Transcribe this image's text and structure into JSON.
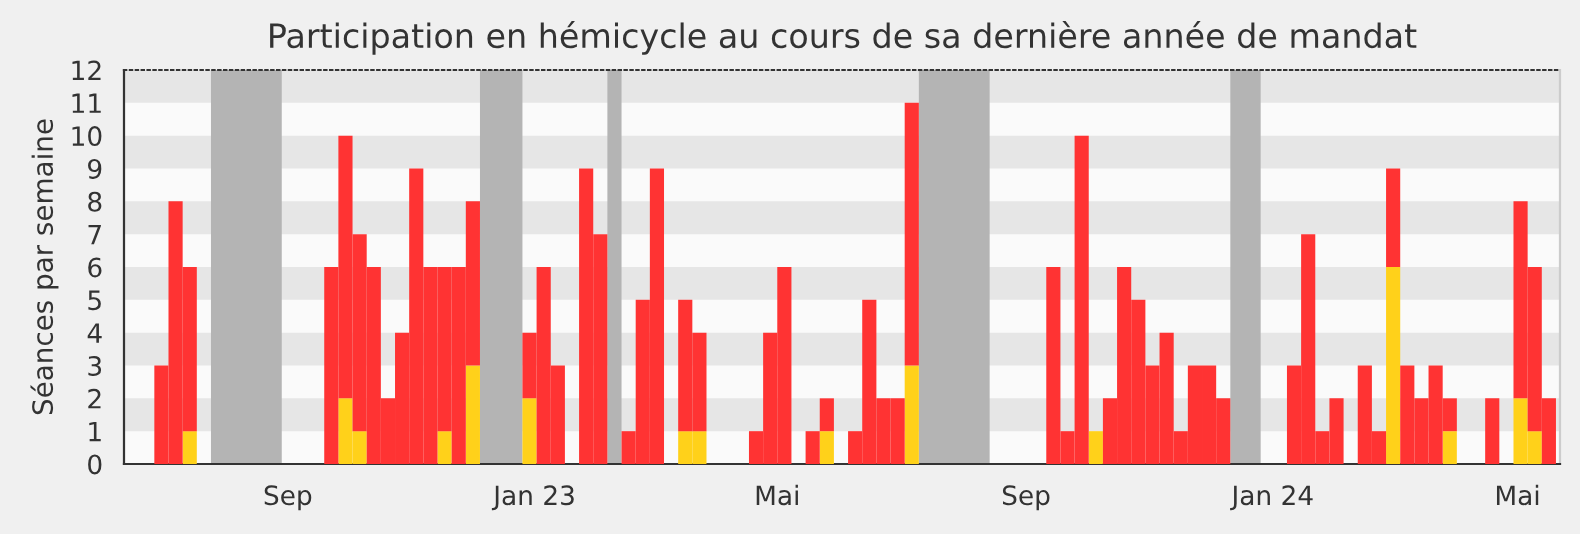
{
  "chart_data": {
    "type": "bar",
    "title": "Participation en hémicycle au cours de sa dernière année de mandat",
    "ylabel": "Séances par semaine",
    "stacked": true,
    "x": [
      "2022-06-27",
      "2022-07-04",
      "2022-07-11",
      "2022-09-19",
      "2022-09-26",
      "2022-10-03",
      "2022-10-10",
      "2022-10-17",
      "2022-10-24",
      "2022-10-31",
      "2022-11-07",
      "2022-11-14",
      "2022-11-21",
      "2022-11-28",
      "2022-12-26",
      "2023-01-02",
      "2023-01-09",
      "2023-01-23",
      "2023-01-30",
      "2023-02-13",
      "2023-02-20",
      "2023-02-27",
      "2023-03-13",
      "2023-03-20",
      "2023-04-17",
      "2023-04-24",
      "2023-05-01",
      "2023-05-15",
      "2023-05-22",
      "2023-06-05",
      "2023-06-12",
      "2023-06-19",
      "2023-06-26",
      "2023-07-03",
      "2023-09-11",
      "2023-09-18",
      "2023-09-25",
      "2023-10-02",
      "2023-10-09",
      "2023-10-16",
      "2023-10-23",
      "2023-10-30",
      "2023-11-06",
      "2023-11-13",
      "2023-11-20",
      "2023-11-27",
      "2023-12-04",
      "2024-01-08",
      "2024-01-15",
      "2024-01-22",
      "2024-01-29",
      "2024-02-12",
      "2024-02-19",
      "2024-02-26",
      "2024-03-04",
      "2024-03-11",
      "2024-03-18",
      "2024-03-25",
      "2024-04-15",
      "2024-04-29",
      "2024-05-06",
      "2024-05-13"
    ],
    "series": [
      {
        "color": "#ffd11a",
        "values": [
          null,
          null,
          1,
          null,
          2,
          1,
          null,
          null,
          null,
          null,
          null,
          1,
          null,
          3,
          2,
          null,
          null,
          null,
          null,
          null,
          null,
          null,
          1,
          1,
          null,
          null,
          null,
          null,
          1,
          null,
          null,
          null,
          null,
          3,
          null,
          null,
          null,
          1,
          null,
          null,
          null,
          null,
          null,
          null,
          null,
          null,
          null,
          null,
          null,
          null,
          null,
          null,
          null,
          6,
          null,
          null,
          null,
          1,
          null,
          2,
          1,
          null
        ]
      },
      {
        "color": "#ff3333",
        "values": [
          3,
          8,
          5,
          6,
          8,
          6,
          6,
          2,
          4,
          9,
          6,
          5,
          6,
          5,
          2,
          6,
          3,
          9,
          7,
          1,
          5,
          9,
          4,
          3,
          1,
          4,
          6,
          1,
          1,
          1,
          5,
          2,
          2,
          8,
          6,
          1,
          10,
          null,
          2,
          6,
          5,
          3,
          4,
          1,
          3,
          3,
          2,
          3,
          7,
          1,
          2,
          3,
          1,
          3,
          3,
          2,
          3,
          1,
          2,
          6,
          5,
          2
        ]
      }
    ],
    "bands": [
      {
        "axis": "x",
        "from": "2022-07-25",
        "to": "2022-08-29",
        "color": "#b4b4b4"
      },
      {
        "axis": "x",
        "from": "2022-12-05",
        "to": "2022-12-26",
        "color": "#b4b4b4"
      },
      {
        "axis": "x",
        "from": "2023-02-06",
        "to": "2023-02-13",
        "color": "#b4b4b4"
      },
      {
        "axis": "x",
        "from": "2023-07-10",
        "to": "2023-08-14",
        "color": "#b4b4b4"
      },
      {
        "axis": "x",
        "from": "2023-12-11",
        "to": "2023-12-26",
        "color": "#b4b4b4"
      }
    ],
    "xlim": [
      "2022-06-12",
      "2024-05-22"
    ],
    "xticks": [
      {
        "value": "2022-09-01",
        "label": "Sep"
      },
      {
        "value": "2023-01-01",
        "label": "Jan 23"
      },
      {
        "value": "2023-05-01",
        "label": "Mai"
      },
      {
        "value": "2023-09-01",
        "label": "Sep"
      },
      {
        "value": "2024-01-01",
        "label": "Jan 24"
      },
      {
        "value": "2024-05-01",
        "label": "Mai"
      }
    ],
    "ylim": [
      0,
      12
    ],
    "yticks": [
      0,
      1,
      2,
      3,
      4,
      5,
      6,
      7,
      8,
      9,
      10,
      11,
      12
    ],
    "legend": false
  }
}
